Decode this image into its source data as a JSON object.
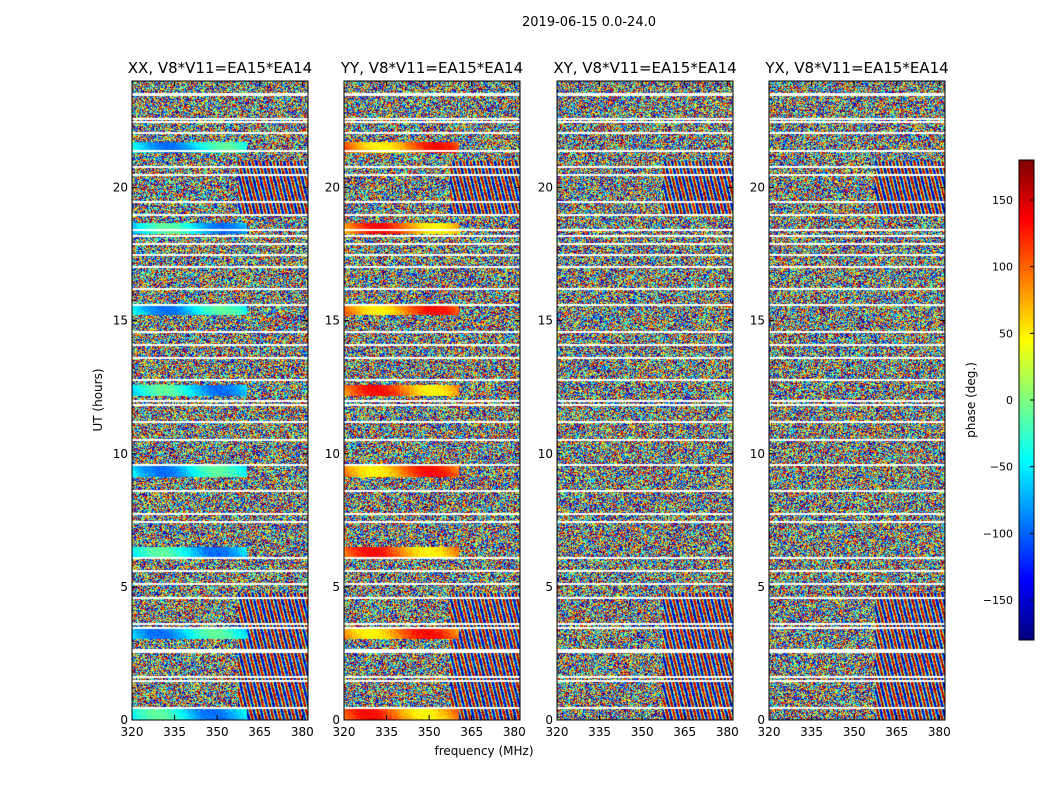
{
  "chart_data": {
    "type": "heatmap",
    "suptitle": "2019-06-15 0.0-24.0",
    "xlabel": "frequency (MHz)",
    "ylabel": "UT (hours)",
    "xlim": [
      320,
      382
    ],
    "ylim": [
      0,
      24
    ],
    "x_ticks": [
      "320",
      "335",
      "350",
      "365",
      "380"
    ],
    "y_ticks": [
      "0",
      "5",
      "10",
      "15",
      "20"
    ],
    "x_tick_values": [
      320,
      335,
      350,
      365,
      380
    ],
    "y_tick_values": [
      0,
      5,
      10,
      15,
      20
    ],
    "panels": [
      {
        "title": "XX, V8*V11=EA15*EA14",
        "polarization": "XX"
      },
      {
        "title": "YY, V8*V11=EA15*EA14",
        "polarization": "YY"
      },
      {
        "title": "XY, V8*V11=EA15*EA14",
        "polarization": "XY"
      },
      {
        "title": "YX, V8*V11=EA15*EA14",
        "polarization": "YX"
      }
    ],
    "colorbar": {
      "label": "phase (deg.)",
      "range": [
        -180,
        180
      ],
      "ticks": [
        "150",
        "100",
        "50",
        "0",
        "−50",
        "−100",
        "−150"
      ],
      "tick_values": [
        150,
        100,
        50,
        0,
        -50,
        -100,
        -150
      ],
      "colormap": "jet"
    },
    "data_gaps_ut_hours": [
      0.45,
      1.45,
      1.6,
      2.55,
      2.65,
      3.45,
      3.6,
      4.6,
      5.1,
      5.6,
      6.1,
      7.45,
      7.75,
      8.6,
      9.6,
      10.55,
      11.2,
      11.85,
      12.0,
      12.8,
      13.6,
      14.1,
      14.6,
      15.6,
      16.2,
      17.05,
      17.5,
      17.9,
      18.2,
      18.45,
      19.0,
      19.5,
      20.5,
      20.8,
      21.4,
      22.1,
      22.5,
      22.6,
      23.5,
      23.55
    ]
  }
}
